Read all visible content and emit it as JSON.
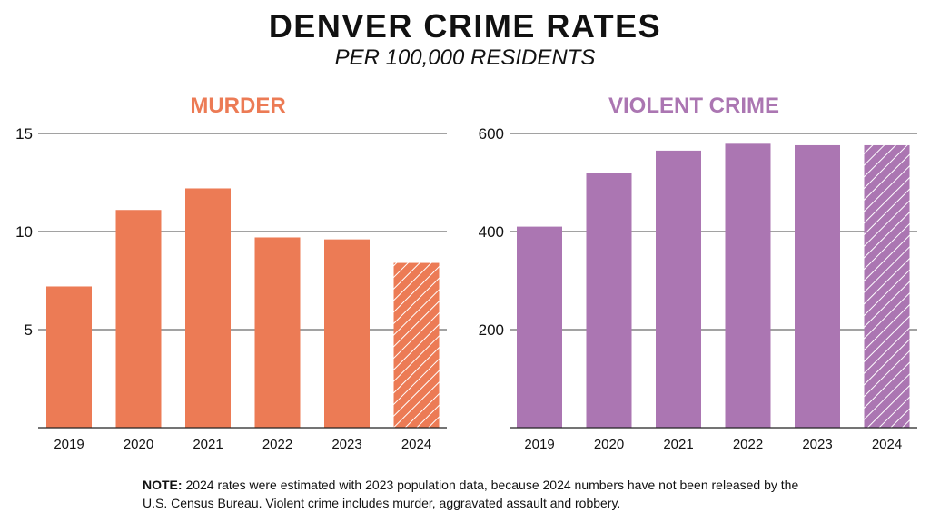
{
  "title": "DENVER CRIME RATES",
  "subtitle": "PER 100,000 RESIDENTS",
  "note": {
    "label": "NOTE:",
    "text": "2024 rates were estimated with 2023 population data, because 2024 numbers have not been released by the U.S. Census Bureau. Violent crime includes murder, aggravated assault and robbery."
  },
  "chart_data": [
    {
      "type": "bar",
      "title": "MURDER",
      "color": "#EC7B55",
      "categories": [
        "2019",
        "2020",
        "2021",
        "2022",
        "2023",
        "2024"
      ],
      "values": [
        7.2,
        11.1,
        12.2,
        9.7,
        9.6,
        8.4
      ],
      "estimated": [
        false,
        false,
        false,
        false,
        false,
        true
      ],
      "ylim": [
        0,
        15
      ],
      "yticks": [
        5,
        10,
        15
      ],
      "ytick_labels": [
        "5",
        "10",
        "15"
      ],
      "grid": true
    },
    {
      "type": "bar",
      "title": "VIOLENT CRIME",
      "color": "#AB76B2",
      "categories": [
        "2019",
        "2020",
        "2021",
        "2022",
        "2023",
        "2024"
      ],
      "values": [
        410,
        520,
        565,
        579,
        576,
        576
      ],
      "estimated": [
        false,
        false,
        false,
        false,
        false,
        true
      ],
      "ylim": [
        0,
        600
      ],
      "yticks": [
        200,
        400,
        600
      ],
      "ytick_labels": [
        "200",
        "400",
        "600"
      ],
      "grid": true
    }
  ]
}
